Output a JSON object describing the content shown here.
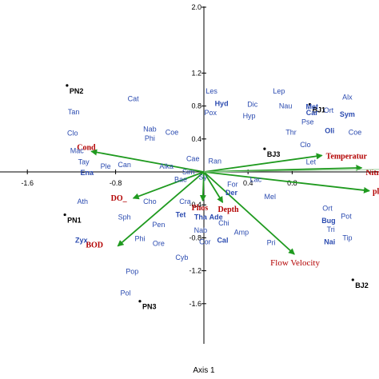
{
  "chart_data": {
    "type": "scatter",
    "xlabel": "Axis 1",
    "x_ticks": [
      -1.6,
      -0.8,
      0.4,
      0.8
    ],
    "y_ticks": [
      2.0,
      1.2,
      0.8,
      0.4,
      -0.4,
      -0.8,
      -1.2,
      -1.6
    ],
    "xlim": [
      -1.9,
      1.5
    ],
    "ylim": [
      -2.0,
      2.0
    ],
    "arrow_color": "#1f9a1f",
    "env_color": "#b30000",
    "species_color": "#2b4bb0",
    "sites": [
      {
        "label": "PN2",
        "x": -1.24,
        "y": 1.05
      },
      {
        "label": "BJ1",
        "x": 0.96,
        "y": 0.82
      },
      {
        "label": "BJ3",
        "x": 0.55,
        "y": 0.28
      },
      {
        "label": "PN1",
        "x": -1.26,
        "y": -0.52
      },
      {
        "label": "PN3",
        "x": -0.58,
        "y": -1.57
      },
      {
        "label": "BJ2",
        "x": 1.35,
        "y": -1.31
      }
    ],
    "env_vectors": [
      {
        "label": "Cond",
        "x": -1.02,
        "y": 0.25
      },
      {
        "label": "Temperatur",
        "x": 1.07,
        "y": 0.2
      },
      {
        "label": "Nitra",
        "x": 1.43,
        "y": 0.05
      },
      {
        "label": "pl",
        "x": 1.5,
        "y": -0.23
      },
      {
        "label": "DO_",
        "x": -0.64,
        "y": -0.32
      },
      {
        "label": "Phos",
        "x": -0.01,
        "y": -0.35
      },
      {
        "label": "Depth",
        "x": 0.17,
        "y": -0.37
      },
      {
        "label": "BOD",
        "x": -0.78,
        "y": -0.9
      },
      {
        "label": "Flow Velocity",
        "x": 0.82,
        "y": -1.0
      }
    ],
    "species": [
      {
        "label": "Cat",
        "x": -0.64,
        "y": 0.86
      },
      {
        "label": "Tan",
        "x": -1.18,
        "y": 0.7
      },
      {
        "label": "Nab",
        "x": -0.49,
        "y": 0.49
      },
      {
        "label": "Phi",
        "x": -0.49,
        "y": 0.38
      },
      {
        "label": "Coe",
        "x": -0.29,
        "y": 0.45
      },
      {
        "label": "Clo",
        "x": -1.19,
        "y": 0.44
      },
      {
        "label": "Mac",
        "x": -1.15,
        "y": 0.23
      },
      {
        "label": "Tay",
        "x": -1.09,
        "y": 0.09
      },
      {
        "label": "Ple",
        "x": -0.89,
        "y": 0.04
      },
      {
        "label": "Can",
        "x": -0.72,
        "y": 0.06
      },
      {
        "label": "Ena",
        "x": -1.06,
        "y": -0.04,
        "bold": true
      },
      {
        "label": "Alka",
        "x": -0.34,
        "y": 0.04
      },
      {
        "label": "Cae",
        "x": -0.1,
        "y": 0.13
      },
      {
        "label": "Sim",
        "x": -0.14,
        "y": -0.03
      },
      {
        "label": "Sy",
        "x": -0.01,
        "y": -0.09
      },
      {
        "label": "Bae",
        "x": -0.21,
        "y": -0.12
      },
      {
        "label": "Ran",
        "x": 0.1,
        "y": 0.1
      },
      {
        "label": "Ath",
        "x": -1.1,
        "y": -0.39
      },
      {
        "label": "Cho",
        "x": -0.49,
        "y": -0.39
      },
      {
        "label": "Cra",
        "x": -0.17,
        "y": -0.39
      },
      {
        "label": "Sph",
        "x": -0.72,
        "y": -0.58
      },
      {
        "label": "Zyx",
        "x": -1.11,
        "y": -0.86,
        "bold": true
      },
      {
        "label": "Pen",
        "x": -0.41,
        "y": -0.67
      },
      {
        "label": "Phi",
        "x": -0.58,
        "y": -0.84
      },
      {
        "label": "Ore",
        "x": -0.41,
        "y": -0.9
      },
      {
        "label": "Tet",
        "x": -0.21,
        "y": -0.55,
        "bold": true
      },
      {
        "label": "Tha",
        "x": -0.03,
        "y": -0.58,
        "bold": true
      },
      {
        "label": "Ade",
        "x": 0.11,
        "y": -0.58,
        "bold": true
      },
      {
        "label": "Nab",
        "x": -0.03,
        "y": -0.74
      },
      {
        "label": "Chi",
        "x": 0.18,
        "y": -0.65
      },
      {
        "label": "Cor",
        "x": 0.01,
        "y": -0.88
      },
      {
        "label": "Cal",
        "x": 0.17,
        "y": -0.86,
        "bold": true
      },
      {
        "label": "Amp",
        "x": 0.34,
        "y": -0.76
      },
      {
        "label": "Cyb",
        "x": -0.2,
        "y": -1.07
      },
      {
        "label": "Pop",
        "x": -0.65,
        "y": -1.24
      },
      {
        "label": "Pol",
        "x": -0.71,
        "y": -1.5
      },
      {
        "label": "Les",
        "x": 0.07,
        "y": 0.95
      },
      {
        "label": "Hyd",
        "x": 0.16,
        "y": 0.8,
        "bold": true
      },
      {
        "label": "Pox",
        "x": 0.06,
        "y": 0.69
      },
      {
        "label": "Dic",
        "x": 0.44,
        "y": 0.79
      },
      {
        "label": "Hyp",
        "x": 0.41,
        "y": 0.65
      },
      {
        "label": "Lep",
        "x": 0.68,
        "y": 0.95
      },
      {
        "label": "Nau",
        "x": 0.74,
        "y": 0.77
      },
      {
        "label": "Met",
        "x": 0.98,
        "y": 0.76,
        "bold": true
      },
      {
        "label": "Car",
        "x": 0.98,
        "y": 0.69,
        "bold": true
      },
      {
        "label": "Pse",
        "x": 0.94,
        "y": 0.58
      },
      {
        "label": "Alx",
        "x": 1.3,
        "y": 0.88
      },
      {
        "label": "Ort",
        "x": 1.13,
        "y": 0.72
      },
      {
        "label": "Sym",
        "x": 1.3,
        "y": 0.67,
        "bold": true
      },
      {
        "label": "Oli",
        "x": 1.14,
        "y": 0.47,
        "bold": true
      },
      {
        "label": "Coe",
        "x": 1.37,
        "y": 0.45
      },
      {
        "label": "Thr",
        "x": 0.79,
        "y": 0.45
      },
      {
        "label": "Clo",
        "x": 0.92,
        "y": 0.3
      },
      {
        "label": "Let",
        "x": 0.97,
        "y": 0.09
      },
      {
        "label": "For",
        "x": 0.26,
        "y": -0.18
      },
      {
        "label": "Der",
        "x": 0.25,
        "y": -0.28,
        "bold": true
      },
      {
        "label": "Lac",
        "x": 0.47,
        "y": -0.12
      },
      {
        "label": "Mel",
        "x": 0.6,
        "y": -0.33
      },
      {
        "label": "Pri",
        "x": 0.61,
        "y": -0.89
      },
      {
        "label": "Ort",
        "x": 1.12,
        "y": -0.47
      },
      {
        "label": "Pot",
        "x": 1.29,
        "y": -0.57
      },
      {
        "label": "Bug",
        "x": 1.13,
        "y": -0.62,
        "bold": true
      },
      {
        "label": "Tri",
        "x": 1.15,
        "y": -0.73
      },
      {
        "label": "Tip",
        "x": 1.3,
        "y": -0.83
      },
      {
        "label": "Nai",
        "x": 1.14,
        "y": -0.88,
        "bold": true
      }
    ]
  }
}
